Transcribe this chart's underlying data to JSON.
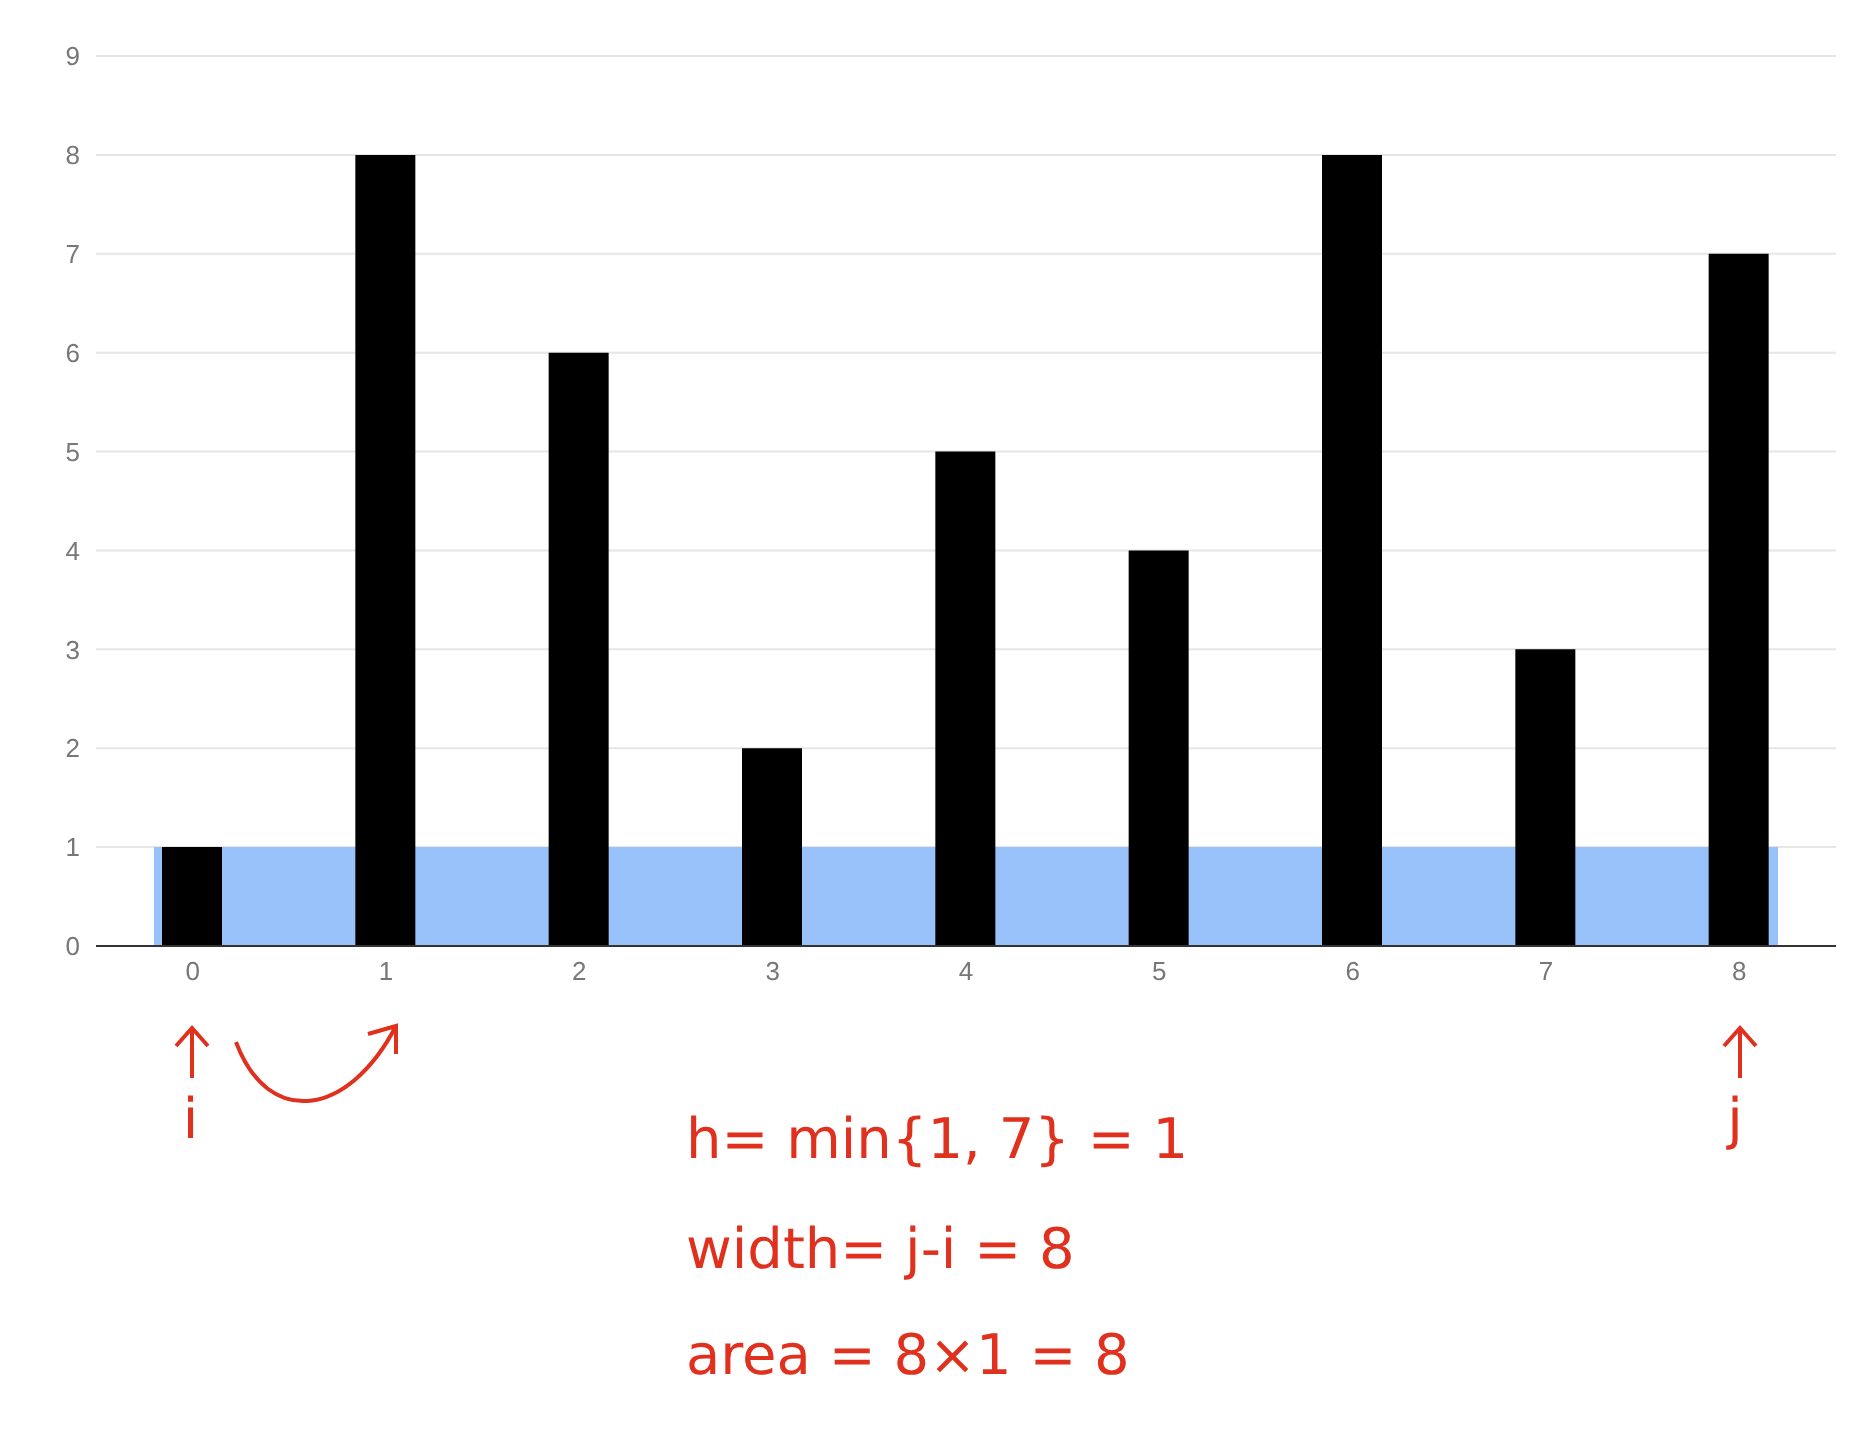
{
  "chart_data": {
    "type": "bar",
    "categories": [
      "0",
      "1",
      "2",
      "3",
      "4",
      "5",
      "6",
      "7",
      "8"
    ],
    "values": [
      1,
      8,
      6,
      2,
      5,
      4,
      8,
      3,
      7
    ],
    "color": "#000000",
    "ylim": [
      0,
      9
    ],
    "yticks": [
      0,
      1,
      2,
      3,
      4,
      5,
      6,
      7,
      8,
      9
    ],
    "grid": "y",
    "bands": [
      {
        "axis": "y",
        "from": 0,
        "to": 1,
        "color": "#99c2fb"
      }
    ],
    "annotations": [
      "i",
      "j",
      "h= min{1, 7} = 1",
      "width= j-i = 8",
      "area = 8×1 = 8"
    ]
  }
}
